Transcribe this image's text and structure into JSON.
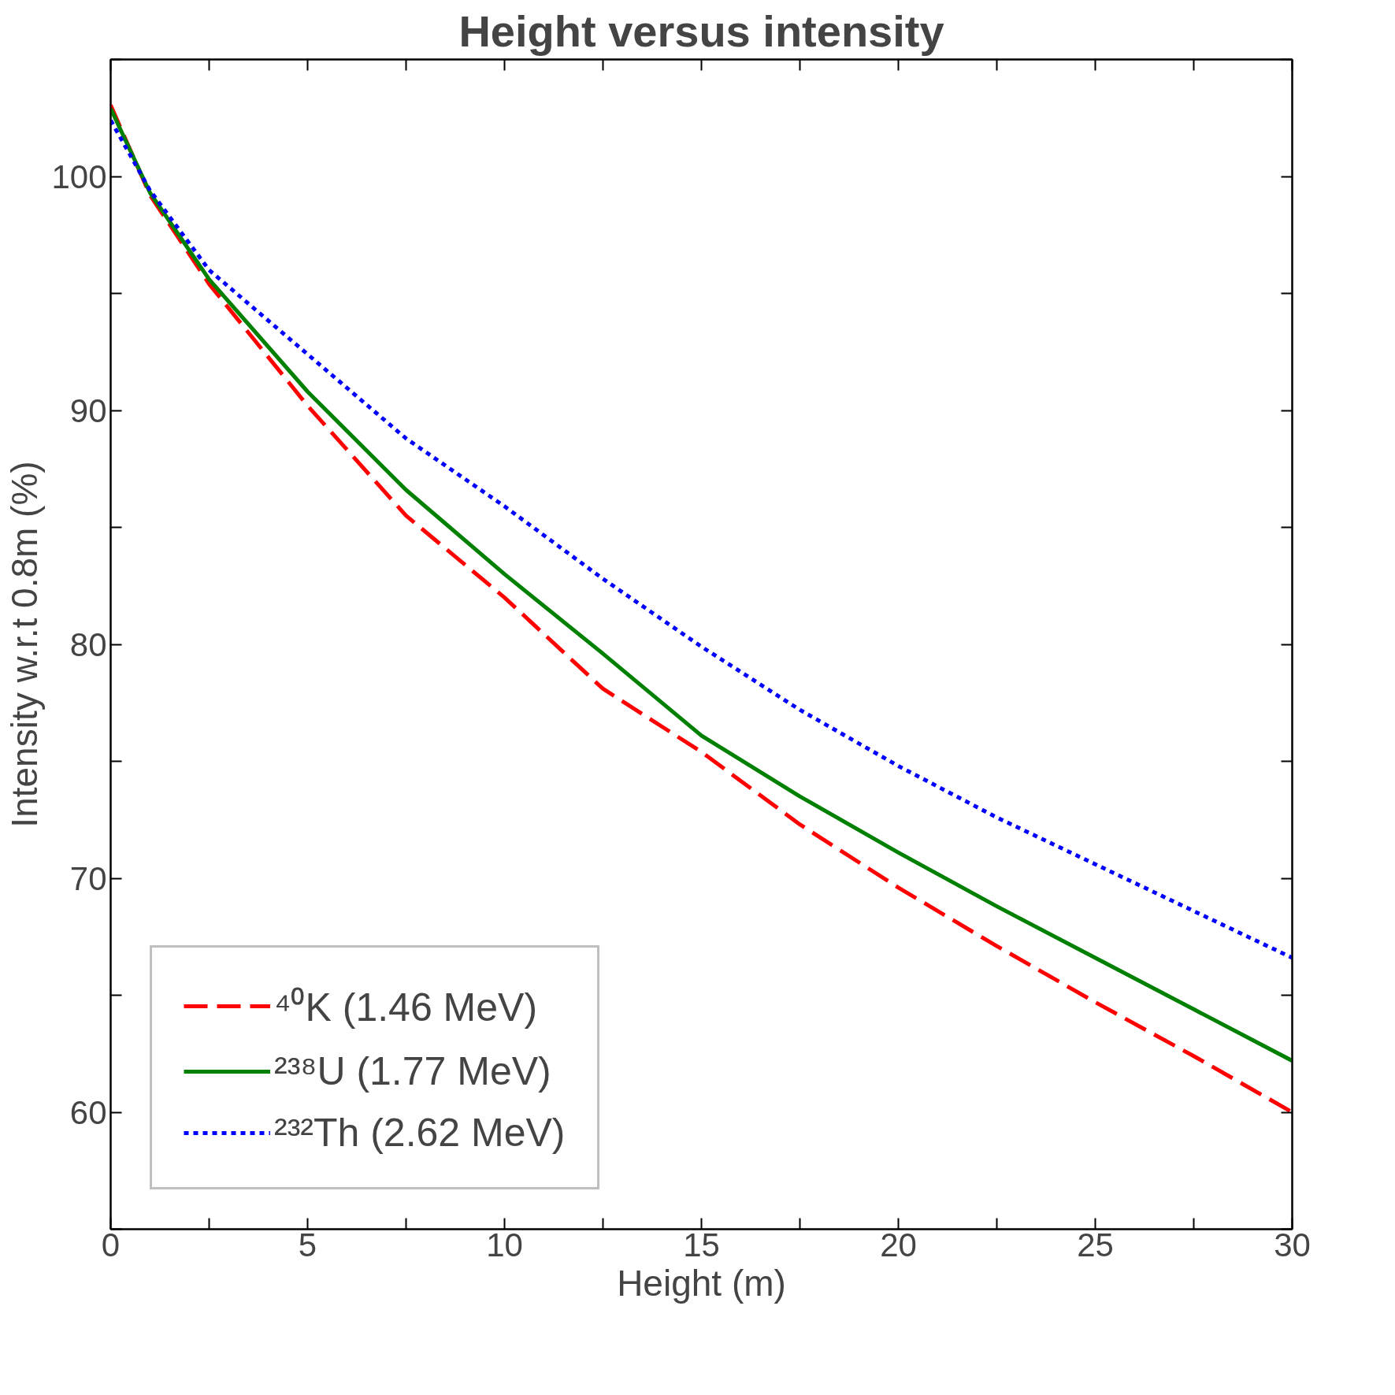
{
  "chart_data": {
    "type": "line",
    "title": "Height versus intensity",
    "xlabel": "Height (m)",
    "ylabel": "Intensity w.r.t 0.8m (%)",
    "x": [
      0,
      1,
      2.5,
      5,
      7.5,
      10,
      12.5,
      15,
      17.5,
      20,
      22.5,
      25,
      27.5,
      30
    ],
    "xlim": [
      0,
      30
    ],
    "ylim": [
      55,
      105
    ],
    "xticks": [
      0,
      {
        "value": 2.5,
        "label": null
      },
      5,
      {
        "value": 7.5,
        "label": null
      },
      10,
      {
        "value": 12.5,
        "label": null
      },
      15,
      {
        "value": 17.5,
        "label": null
      },
      20,
      {
        "value": 22.5,
        "label": null
      },
      25,
      {
        "value": 27.5,
        "label": null
      },
      30
    ],
    "yticks": [
      {
        "value": 55,
        "label": null
      },
      60,
      {
        "value": 65,
        "label": null
      },
      70,
      {
        "value": 75,
        "label": null
      },
      80,
      {
        "value": 85,
        "label": null
      },
      90,
      {
        "value": 95,
        "label": null
      },
      100,
      {
        "value": 105,
        "label": null
      }
    ],
    "grid": false,
    "legend": "bottom left",
    "series": [
      {
        "name": "⁴⁰K (1.46 MeV)",
        "color": "#ff0000",
        "line_style": "dashed",
        "values": [
          103.05,
          99.2,
          95.4,
          90.2,
          85.5,
          82.0,
          78.1,
          75.4,
          72.3,
          69.6,
          67.1,
          64.7,
          62.4,
          60.0
        ]
      },
      {
        "name": "²³⁸U (1.77 MeV)",
        "color": "#008000",
        "line_style": "solid",
        "values": [
          102.9,
          99.3,
          95.6,
          90.8,
          86.6,
          83.0,
          79.6,
          76.1,
          73.5,
          71.1,
          68.8,
          66.6,
          64.4,
          62.2
        ]
      },
      {
        "name": "²³²Th (2.62 MeV)",
        "color": "#0000ff",
        "line_style": "dotted",
        "values": [
          102.4,
          99.4,
          96.0,
          92.4,
          88.8,
          85.9,
          82.8,
          79.9,
          77.2,
          74.8,
          72.6,
          70.6,
          68.6,
          66.6
        ]
      }
    ]
  }
}
